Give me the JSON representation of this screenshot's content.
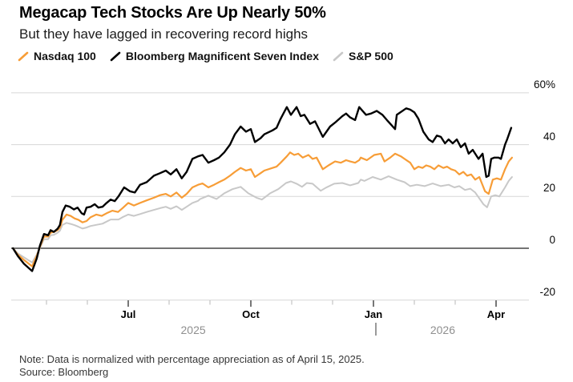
{
  "header": {
    "title": "Megacap Tech Stocks Are Up Nearly 50%",
    "subtitle": "But they have lagged in recovering record highs"
  },
  "legend": {
    "items": [
      {
        "label": "Nasdaq 100",
        "color": "#F79D37"
      },
      {
        "label": "Bloomberg Magnificent Seven Index",
        "color": "#000000"
      },
      {
        "label": "S&P 500",
        "color": "#C8C8C8"
      }
    ]
  },
  "footer": {
    "note": "Note: Data is normalized with percentage appreciation as of April 15, 2025.",
    "source": "Source: Bloomberg"
  },
  "chart_data": {
    "type": "line",
    "title": "Megacap Tech Stocks Are Up Nearly 50%",
    "subtitle": "But they have lagged in recovering record highs",
    "x_unit": "months_since_2025-04-01",
    "x_axis": {
      "tick_labels": [
        "Jul",
        "Oct",
        "Jan",
        "Apr"
      ],
      "major_tick_months": [
        3,
        6,
        9,
        12
      ],
      "minor_tick_months": [
        1,
        2,
        4,
        5,
        7,
        8,
        10,
        11
      ],
      "year_labels": [
        "2025",
        "2026"
      ],
      "year_boundary_month": 9,
      "range_months": [
        0.18,
        12.39
      ]
    },
    "y_axis": {
      "unit": "%",
      "tick_labels": [
        "60%",
        "40",
        "20",
        "0",
        "-20"
      ],
      "values": [
        60,
        40,
        20,
        0,
        -20
      ],
      "ylim": [
        -25,
        62
      ],
      "grid": true,
      "zero_line": true,
      "labels_position": "right"
    },
    "legend_position": "top-left",
    "series": [
      {
        "name": "S&P 500",
        "color": "#C8C8C8",
        "stroke_width": 2,
        "points": [
          [
            0.18,
            0
          ],
          [
            0.3,
            -2
          ],
          [
            0.45,
            -3.5
          ],
          [
            0.65,
            -5.5
          ],
          [
            0.76,
            -2.5
          ],
          [
            0.84,
            0
          ],
          [
            0.94,
            3.5
          ],
          [
            1.04,
            3.5
          ],
          [
            1.1,
            5
          ],
          [
            1.18,
            5.2
          ],
          [
            1.27,
            6
          ],
          [
            1.33,
            6.8
          ],
          [
            1.39,
            9
          ],
          [
            1.49,
            9.8
          ],
          [
            1.59,
            9.4
          ],
          [
            1.69,
            8.9
          ],
          [
            1.78,
            8.3
          ],
          [
            1.88,
            7.6
          ],
          [
            1.98,
            8
          ],
          [
            2.08,
            8.6
          ],
          [
            2.18,
            8.9
          ],
          [
            2.37,
            9.5
          ],
          [
            2.57,
            11.1
          ],
          [
            2.76,
            11.1
          ],
          [
            2.86,
            12
          ],
          [
            3.0,
            13
          ],
          [
            3.14,
            12.5
          ],
          [
            3.29,
            13.2
          ],
          [
            3.45,
            14
          ],
          [
            3.63,
            14.8
          ],
          [
            3.78,
            15.5
          ],
          [
            3.92,
            16
          ],
          [
            4.04,
            15.2
          ],
          [
            4.18,
            16.2
          ],
          [
            4.31,
            14.8
          ],
          [
            4.43,
            16
          ],
          [
            4.57,
            17.5
          ],
          [
            4.71,
            18.3
          ],
          [
            4.76,
            19
          ],
          [
            4.96,
            20.3
          ],
          [
            5.16,
            19
          ],
          [
            5.35,
            21.2
          ],
          [
            5.55,
            22.8
          ],
          [
            5.75,
            23.7
          ],
          [
            5.94,
            21.2
          ],
          [
            6.14,
            19.5
          ],
          [
            6.27,
            18.8
          ],
          [
            6.47,
            21.2
          ],
          [
            6.67,
            22.8
          ],
          [
            6.86,
            25.2
          ],
          [
            6.98,
            25.8
          ],
          [
            7.12,
            24.9
          ],
          [
            7.25,
            23.7
          ],
          [
            7.37,
            25.2
          ],
          [
            7.51,
            24.9
          ],
          [
            7.71,
            22.2
          ],
          [
            7.84,
            23.4
          ],
          [
            8.04,
            24.9
          ],
          [
            8.24,
            25.2
          ],
          [
            8.43,
            24.3
          ],
          [
            8.63,
            25.2
          ],
          [
            8.69,
            26.5
          ],
          [
            8.78,
            26
          ],
          [
            8.98,
            27.5
          ],
          [
            9.18,
            26.5
          ],
          [
            9.37,
            27.8
          ],
          [
            9.57,
            26.5
          ],
          [
            9.76,
            25.5
          ],
          [
            9.9,
            24
          ],
          [
            10.06,
            24.5
          ],
          [
            10.25,
            24
          ],
          [
            10.45,
            25
          ],
          [
            10.65,
            24
          ],
          [
            10.84,
            24.5
          ],
          [
            10.98,
            23.5
          ],
          [
            11.1,
            24
          ],
          [
            11.24,
            22.5
          ],
          [
            11.37,
            23
          ],
          [
            11.49,
            21.5
          ],
          [
            11.69,
            17
          ],
          [
            11.78,
            15.8
          ],
          [
            11.88,
            20
          ],
          [
            11.98,
            20.5
          ],
          [
            12.08,
            20
          ],
          [
            12.22,
            23.5
          ],
          [
            12.31,
            26
          ],
          [
            12.39,
            27.5
          ]
        ]
      },
      {
        "name": "Nasdaq 100",
        "color": "#F79D37",
        "stroke_width": 2.2,
        "points": [
          [
            0.18,
            0
          ],
          [
            0.3,
            -2.5
          ],
          [
            0.45,
            -4.5
          ],
          [
            0.65,
            -7
          ],
          [
            0.76,
            -3
          ],
          [
            0.84,
            0.5
          ],
          [
            0.94,
            4.5
          ],
          [
            1.04,
            4.5
          ],
          [
            1.1,
            6
          ],
          [
            1.18,
            6.3
          ],
          [
            1.27,
            7
          ],
          [
            1.33,
            8
          ],
          [
            1.39,
            11
          ],
          [
            1.49,
            13
          ],
          [
            1.59,
            12.5
          ],
          [
            1.69,
            11.5
          ],
          [
            1.78,
            11
          ],
          [
            1.88,
            10
          ],
          [
            1.98,
            10.5
          ],
          [
            2.08,
            12
          ],
          [
            2.22,
            13
          ],
          [
            2.35,
            12.5
          ],
          [
            2.47,
            13.5
          ],
          [
            2.61,
            14.5
          ],
          [
            2.75,
            14
          ],
          [
            2.86,
            15.5
          ],
          [
            3.0,
            17.5
          ],
          [
            3.14,
            16.5
          ],
          [
            3.29,
            17.5
          ],
          [
            3.45,
            18.5
          ],
          [
            3.63,
            19.5
          ],
          [
            3.78,
            20.5
          ],
          [
            3.92,
            21
          ],
          [
            4.04,
            20
          ],
          [
            4.18,
            21.5
          ],
          [
            4.31,
            19.5
          ],
          [
            4.43,
            21
          ],
          [
            4.57,
            23.5
          ],
          [
            4.71,
            24.5
          ],
          [
            4.82,
            25
          ],
          [
            4.96,
            23.5
          ],
          [
            5.1,
            24.5
          ],
          [
            5.22,
            25.5
          ],
          [
            5.35,
            26.5
          ],
          [
            5.49,
            28
          ],
          [
            5.61,
            29.5
          ],
          [
            5.75,
            31
          ],
          [
            5.88,
            30
          ],
          [
            6.0,
            30.5
          ],
          [
            6.1,
            27.5
          ],
          [
            6.24,
            29
          ],
          [
            6.33,
            30
          ],
          [
            6.53,
            31
          ],
          [
            6.63,
            31.5
          ],
          [
            6.73,
            33
          ],
          [
            6.88,
            35.5
          ],
          [
            6.96,
            37
          ],
          [
            7.06,
            36
          ],
          [
            7.16,
            36.5
          ],
          [
            7.27,
            35
          ],
          [
            7.41,
            36
          ],
          [
            7.51,
            34.5
          ],
          [
            7.61,
            35
          ],
          [
            7.76,
            30.5
          ],
          [
            7.9,
            32
          ],
          [
            8.06,
            33.5
          ],
          [
            8.2,
            33
          ],
          [
            8.33,
            34
          ],
          [
            8.43,
            33.5
          ],
          [
            8.55,
            33
          ],
          [
            8.65,
            34
          ],
          [
            8.69,
            35
          ],
          [
            8.84,
            34
          ],
          [
            9.02,
            36
          ],
          [
            9.18,
            36.5
          ],
          [
            9.27,
            33.5
          ],
          [
            9.41,
            35
          ],
          [
            9.53,
            36.5
          ],
          [
            9.67,
            35.5
          ],
          [
            9.76,
            34.5
          ],
          [
            9.9,
            33
          ],
          [
            10.0,
            30.5
          ],
          [
            10.1,
            31.5
          ],
          [
            10.2,
            31
          ],
          [
            10.29,
            32
          ],
          [
            10.39,
            31.5
          ],
          [
            10.49,
            30.5
          ],
          [
            10.59,
            32
          ],
          [
            10.71,
            31
          ],
          [
            10.8,
            31.5
          ],
          [
            10.9,
            30.5
          ],
          [
            11.0,
            30
          ],
          [
            11.1,
            28.5
          ],
          [
            11.2,
            29.5
          ],
          [
            11.29,
            28
          ],
          [
            11.39,
            28.5
          ],
          [
            11.49,
            26.5
          ],
          [
            11.59,
            27.5
          ],
          [
            11.73,
            22
          ],
          [
            11.82,
            21
          ],
          [
            11.92,
            26.5
          ],
          [
            12.02,
            27
          ],
          [
            12.12,
            26.5
          ],
          [
            12.22,
            30.5
          ],
          [
            12.31,
            33.5
          ],
          [
            12.39,
            35
          ]
        ]
      },
      {
        "name": "Bloomberg Magnificent Seven Index",
        "color": "#000000",
        "stroke_width": 2.4,
        "points": [
          [
            0.18,
            0
          ],
          [
            0.3,
            -3
          ],
          [
            0.45,
            -6
          ],
          [
            0.65,
            -8.8
          ],
          [
            0.76,
            -4
          ],
          [
            0.84,
            1
          ],
          [
            0.94,
            5.5
          ],
          [
            1.04,
            5
          ],
          [
            1.1,
            7
          ],
          [
            1.18,
            6.3
          ],
          [
            1.27,
            7.5
          ],
          [
            1.33,
            9
          ],
          [
            1.39,
            14
          ],
          [
            1.47,
            16.5
          ],
          [
            1.57,
            16
          ],
          [
            1.67,
            15
          ],
          [
            1.76,
            15.7
          ],
          [
            1.86,
            13.5
          ],
          [
            1.92,
            13
          ],
          [
            1.98,
            15.7
          ],
          [
            2.08,
            16
          ],
          [
            2.18,
            17
          ],
          [
            2.27,
            15.7
          ],
          [
            2.37,
            16
          ],
          [
            2.47,
            17.5
          ],
          [
            2.57,
            18.8
          ],
          [
            2.67,
            18.2
          ],
          [
            2.76,
            20
          ],
          [
            2.9,
            23.5
          ],
          [
            3.04,
            22
          ],
          [
            3.16,
            21.5
          ],
          [
            3.29,
            24.5
          ],
          [
            3.45,
            25.5
          ],
          [
            3.63,
            28
          ],
          [
            3.78,
            29
          ],
          [
            3.92,
            30
          ],
          [
            4.04,
            28.5
          ],
          [
            4.18,
            30.5
          ],
          [
            4.31,
            27
          ],
          [
            4.43,
            29.5
          ],
          [
            4.57,
            34.5
          ],
          [
            4.71,
            35.5
          ],
          [
            4.82,
            36
          ],
          [
            4.96,
            33
          ],
          [
            5.1,
            34
          ],
          [
            5.22,
            35
          ],
          [
            5.35,
            37
          ],
          [
            5.49,
            40
          ],
          [
            5.61,
            44
          ],
          [
            5.75,
            47
          ],
          [
            5.88,
            45
          ],
          [
            6.0,
            46
          ],
          [
            6.1,
            41
          ],
          [
            6.24,
            42.5
          ],
          [
            6.33,
            44
          ],
          [
            6.53,
            45.5
          ],
          [
            6.63,
            46.5
          ],
          [
            6.73,
            50
          ],
          [
            6.88,
            54.5
          ],
          [
            6.98,
            51.5
          ],
          [
            7.12,
            54.5
          ],
          [
            7.22,
            51
          ],
          [
            7.31,
            51.5
          ],
          [
            7.45,
            48
          ],
          [
            7.57,
            49
          ],
          [
            7.76,
            43
          ],
          [
            7.94,
            47
          ],
          [
            8.06,
            48.5
          ],
          [
            8.24,
            51
          ],
          [
            8.33,
            52
          ],
          [
            8.43,
            50.5
          ],
          [
            8.55,
            49.5
          ],
          [
            8.65,
            54.5
          ],
          [
            8.82,
            51.5
          ],
          [
            8.94,
            52
          ],
          [
            9.08,
            53
          ],
          [
            9.22,
            51.5
          ],
          [
            9.33,
            49.5
          ],
          [
            9.53,
            46
          ],
          [
            9.57,
            51.5
          ],
          [
            9.8,
            54
          ],
          [
            9.9,
            53.5
          ],
          [
            10.0,
            52.5
          ],
          [
            10.1,
            50
          ],
          [
            10.22,
            45
          ],
          [
            10.35,
            42
          ],
          [
            10.45,
            41
          ],
          [
            10.55,
            43.5
          ],
          [
            10.65,
            43
          ],
          [
            10.75,
            40.5
          ],
          [
            10.84,
            42
          ],
          [
            10.94,
            40.5
          ],
          [
            11.04,
            42
          ],
          [
            11.14,
            39
          ],
          [
            11.24,
            40.5
          ],
          [
            11.33,
            36.5
          ],
          [
            11.43,
            38
          ],
          [
            11.57,
            34.5
          ],
          [
            11.67,
            36.5
          ],
          [
            11.76,
            27.5
          ],
          [
            11.82,
            28
          ],
          [
            11.88,
            34.5
          ],
          [
            11.96,
            35
          ],
          [
            12.06,
            35
          ],
          [
            12.12,
            34.5
          ],
          [
            12.22,
            40
          ],
          [
            12.27,
            42
          ],
          [
            12.37,
            46.5
          ]
        ]
      }
    ]
  }
}
